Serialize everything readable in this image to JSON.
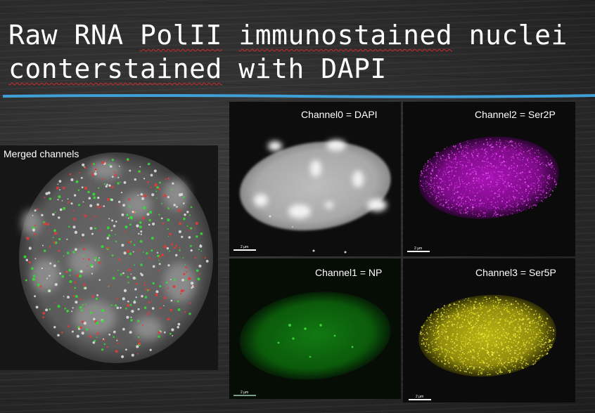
{
  "title": {
    "line1_a": "Raw RNA ",
    "line1_b": "PolII",
    "line1_c": " ",
    "line1_d": "immunostained",
    "line1_e": " nuclei",
    "line2_a": "conterstained",
    "line2_b": " with DAPI"
  },
  "panels": {
    "merged": {
      "label": "Merged channels"
    },
    "dapi": {
      "label": "Channel0 = DAPI",
      "scale": "2 µm"
    },
    "ser2p": {
      "label": "Channel2 = Ser2P",
      "scale": "2 µm"
    },
    "np": {
      "label": "Channel1 = NP",
      "scale": "2 µm"
    },
    "ser5p": {
      "label": "Channel3 = Ser5P",
      "scale": "2 µm"
    }
  },
  "colors": {
    "rule": "#3fa0d8",
    "dapi": "#e8e8e8",
    "ser2p": "#c21ccf",
    "np": "#1fa51f",
    "ser5p": "#e6e61a",
    "merged_red": "#e23b3b",
    "merged_green": "#33dd33"
  }
}
